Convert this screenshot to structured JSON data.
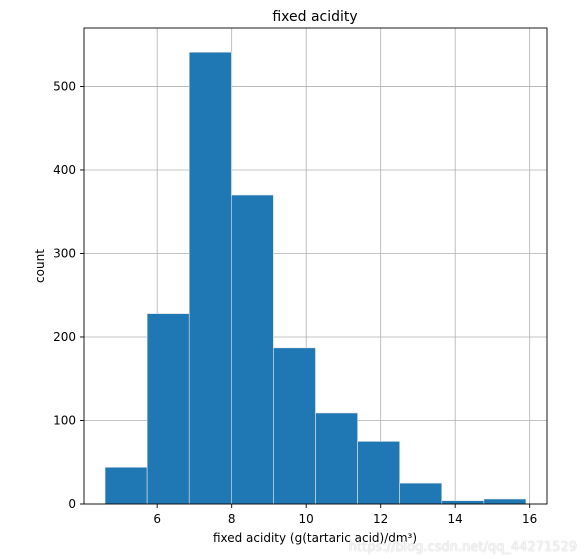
{
  "chart_data": {
    "type": "bar",
    "title": "fixed acidity",
    "xlabel": "fixed acidity (g(tartaric acid)/dm³)",
    "ylabel": "count",
    "bin_edges": [
      4.6,
      5.73,
      6.86,
      7.99,
      9.12,
      10.25,
      11.38,
      12.51,
      13.64,
      14.77,
      15.9
    ],
    "values": [
      44,
      228,
      541,
      370,
      187,
      109,
      75,
      25,
      4,
      6
    ],
    "xlim": [
      4.035,
      16.465
    ],
    "ylim": [
      0,
      570
    ],
    "xticks": [
      6,
      8,
      10,
      12,
      14,
      16
    ],
    "yticks": [
      0,
      100,
      200,
      300,
      400,
      500
    ],
    "grid": true,
    "bar_color": "#1f77b4",
    "bar_edge_color": "#e8e8e8",
    "grid_color": "#b0b0b0"
  },
  "watermark": "https://blog.csdn.net/qq_44271529"
}
